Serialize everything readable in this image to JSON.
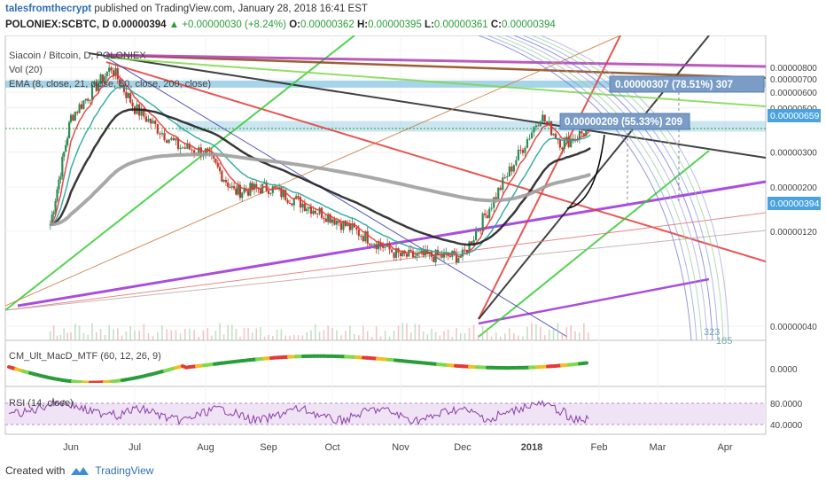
{
  "header": {
    "author": "talesfromthecrypt",
    "published_text": "published on TradingView.com, January 28, 2018 16:41 EST",
    "symbol": "POLONIEX:SCBTC, D",
    "last": "0.00000394",
    "change_arrow": "▲",
    "change": "+0.00000030 (+8.24%)",
    "o_label": "O:",
    "o_value": "0.00000362",
    "h_label": "H:",
    "h_value": "0.00000395",
    "l_label": "L:",
    "l_value": "0.00000361",
    "c_label": "C:",
    "c_value": "0.00000394"
  },
  "legend": {
    "title": "Siacoin / Bitcoin, D, POLONIEX",
    "vol": "Vol (20)",
    "ema": "EMA (8, close, 21, close, 50, close, 200, close)"
  },
  "indicators": {
    "macd_title": "CM_Ult_MacD_MTF (60, 12, 26, 9)",
    "rsi_title": "RSI (14, close)"
  },
  "price_axis": {
    "ticks": [
      "0.00000800",
      "0.00000700",
      "0.00000600",
      "0.00000500",
      "0.00000300",
      "0.00000200",
      "0.00000120",
      "0.00000040"
    ],
    "label_659": "0.00000659",
    "label_394": "0.00000394"
  },
  "macd_axis": {
    "ticks": [
      "0.0000"
    ]
  },
  "rsi_axis": {
    "ticks": [
      "80.0000",
      "40.0000"
    ]
  },
  "x_axis": {
    "labels": [
      "Jun",
      "Jul",
      "Aug",
      "Sep",
      "Oct",
      "Nov",
      "Dec",
      "2018",
      "Feb",
      "Mar",
      "Apr"
    ]
  },
  "annotations": {
    "measure_big": "0.00000307 (78.51%) 307",
    "measure_small": "0.00000209 (55.33%) 209",
    "tag_323": "323",
    "tag_185": "185"
  },
  "footer": {
    "created_with": "Created with",
    "brand": "TradingView"
  },
  "colors": {
    "candle_up": "#2e8b57",
    "candle_down": "#c0392b",
    "ema8": "#e53935",
    "ema21": "#26a69a",
    "ema50": "#222222",
    "ema200": "#9e9e9e",
    "hline_blue": "#6ab7d8",
    "axis_label_blue": "#4aa3df",
    "measure_box": "#7a9cc6"
  },
  "chart_data": {
    "type": "candlestick",
    "title": "Siacoin / Bitcoin, D, POLONIEX",
    "y_scale": "log",
    "ylim": [
      4e-07,
      9e-07
    ],
    "x_range": [
      "2017-05",
      "2018-04"
    ],
    "approx_closes_by_month": [
      {
        "x": "2017-05-20",
        "y": 1.3e-06
      },
      {
        "x": "2017-06-01",
        "y": 4.5e-06
      },
      {
        "x": "2017-06-20",
        "y": 8e-06
      },
      {
        "x": "2017-07-01",
        "y": 5e-06
      },
      {
        "x": "2017-07-20",
        "y": 3.2e-06
      },
      {
        "x": "2017-08-01",
        "y": 3e-06
      },
      {
        "x": "2017-08-15",
        "y": 1.9e-06
      },
      {
        "x": "2017-09-01",
        "y": 2e-06
      },
      {
        "x": "2017-10-01",
        "y": 1.4e-06
      },
      {
        "x": "2017-11-01",
        "y": 9e-07
      },
      {
        "x": "2017-12-01",
        "y": 9e-07
      },
      {
        "x": "2017-12-20",
        "y": 2.2e-06
      },
      {
        "x": "2018-01-05",
        "y": 4.6e-06
      },
      {
        "x": "2018-01-15",
        "y": 3.3e-06
      },
      {
        "x": "2018-01-28",
        "y": 3.94e-06
      }
    ],
    "horizontal_levels": [
      6.59e-06,
      3.94e-06
    ],
    "last_close": 3.94e-06
  }
}
